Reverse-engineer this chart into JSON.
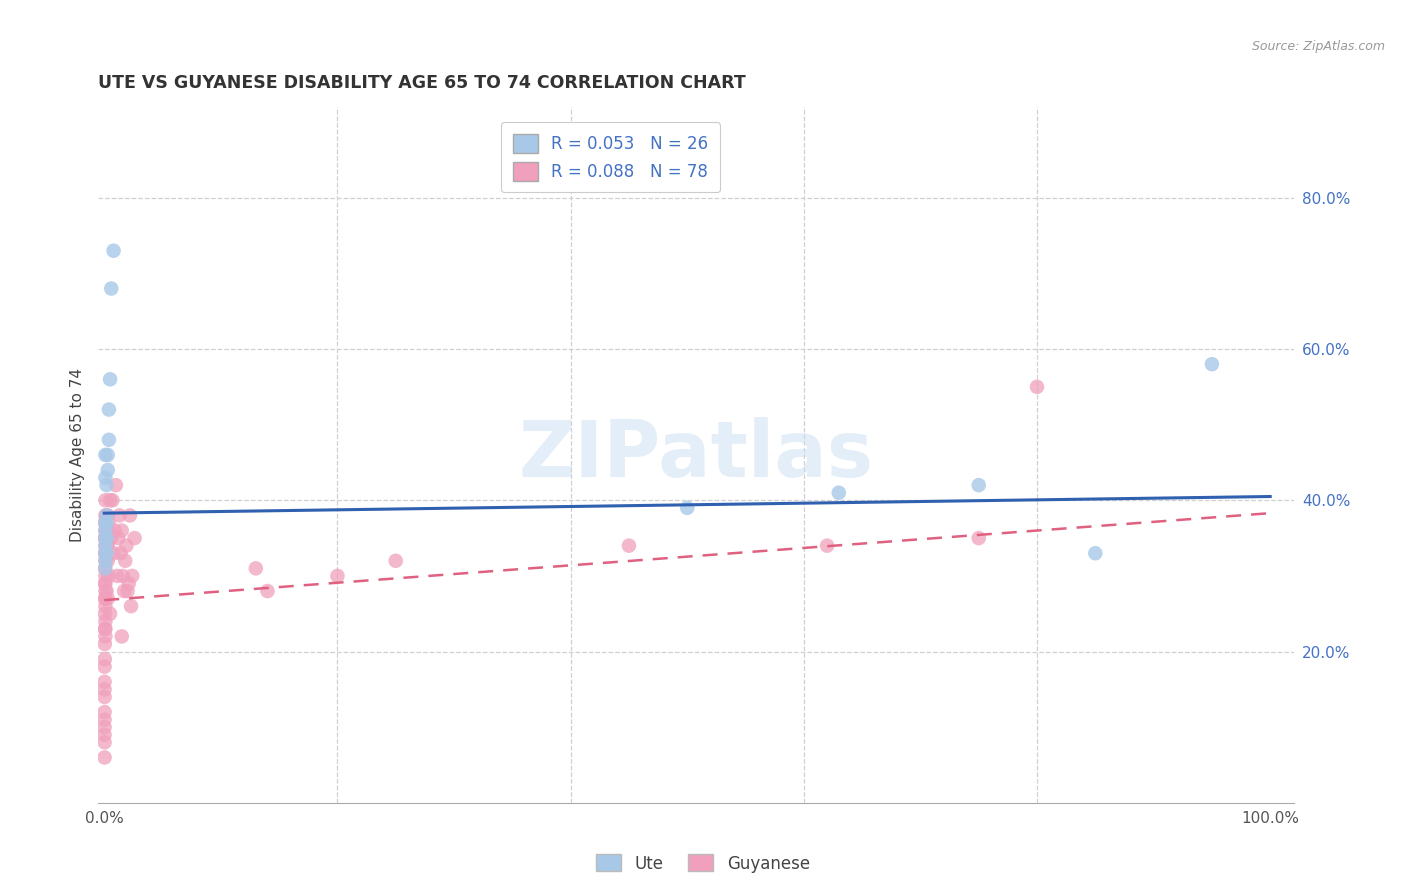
{
  "title": "UTE VS GUYANESE DISABILITY AGE 65 TO 74 CORRELATION CHART",
  "source": "Source: ZipAtlas.com",
  "ylabel": "Disability Age 65 to 74",
  "watermark": "ZIPatlas",
  "ute_R": 0.053,
  "ute_N": 26,
  "guyanese_R": 0.088,
  "guyanese_N": 78,
  "xlim": [
    -0.005,
    1.02
  ],
  "ylim": [
    0.0,
    0.92
  ],
  "yticks": [
    0.2,
    0.4,
    0.6,
    0.8
  ],
  "ytick_labels": [
    "20.0%",
    "40.0%",
    "60.0%",
    "80.0%"
  ],
  "xticks": [
    0.0,
    0.1,
    0.2,
    0.3,
    0.4,
    0.5,
    0.6,
    0.7,
    0.8,
    0.9,
    1.0
  ],
  "xtick_labels": [
    "0.0%",
    "",
    "",
    "",
    "",
    "",
    "",
    "",
    "",
    "",
    "100.0%"
  ],
  "ute_color": "#a8c8e8",
  "ute_line_color": "#3060b0",
  "guyanese_color": "#f0a0bc",
  "guyanese_line_color": "#e06080",
  "background_color": "#ffffff",
  "grid_color": "#d0d0d0",
  "ute_line_intercept": 0.383,
  "ute_line_slope": 0.022,
  "guyanese_line_intercept": 0.268,
  "guyanese_line_slope": 0.115,
  "ute_x": [
    0.008,
    0.006,
    0.005,
    0.004,
    0.004,
    0.003,
    0.003,
    0.002,
    0.002,
    0.002,
    0.002,
    0.002,
    0.001,
    0.001,
    0.001,
    0.001,
    0.001,
    0.001,
    0.001,
    0.001,
    0.001,
    0.5,
    0.63,
    0.75,
    0.85,
    0.95
  ],
  "ute_y": [
    0.73,
    0.68,
    0.56,
    0.52,
    0.48,
    0.46,
    0.44,
    0.42,
    0.38,
    0.37,
    0.35,
    0.33,
    0.46,
    0.43,
    0.37,
    0.36,
    0.35,
    0.34,
    0.33,
    0.32,
    0.31,
    0.39,
    0.41,
    0.42,
    0.33,
    0.58
  ],
  "guyanese_x": [
    0.0005,
    0.0005,
    0.0005,
    0.0005,
    0.0005,
    0.0005,
    0.0005,
    0.0005,
    0.0005,
    0.0005,
    0.001,
    0.001,
    0.001,
    0.001,
    0.001,
    0.001,
    0.001,
    0.001,
    0.001,
    0.001,
    0.001,
    0.001,
    0.001,
    0.001,
    0.001,
    0.002,
    0.002,
    0.002,
    0.002,
    0.002,
    0.003,
    0.003,
    0.003,
    0.003,
    0.003,
    0.004,
    0.004,
    0.005,
    0.005,
    0.006,
    0.007,
    0.008,
    0.009,
    0.01,
    0.011,
    0.012,
    0.013,
    0.015,
    0.015,
    0.016,
    0.018,
    0.02,
    0.022,
    0.024,
    0.026,
    0.014,
    0.017,
    0.019,
    0.021,
    0.023,
    0.13,
    0.14,
    0.2,
    0.25,
    0.45,
    0.62,
    0.75,
    0.8,
    0.0003,
    0.0003,
    0.0003,
    0.0003,
    0.0003,
    0.0003,
    0.0003,
    0.0003,
    0.0003,
    0.0003
  ],
  "guyanese_y": [
    0.37,
    0.35,
    0.33,
    0.31,
    0.29,
    0.27,
    0.25,
    0.23,
    0.21,
    0.19,
    0.4,
    0.38,
    0.36,
    0.35,
    0.34,
    0.33,
    0.32,
    0.3,
    0.29,
    0.28,
    0.27,
    0.26,
    0.24,
    0.23,
    0.22,
    0.38,
    0.36,
    0.35,
    0.34,
    0.28,
    0.38,
    0.36,
    0.34,
    0.32,
    0.27,
    0.37,
    0.3,
    0.4,
    0.25,
    0.35,
    0.4,
    0.33,
    0.36,
    0.42,
    0.3,
    0.35,
    0.38,
    0.36,
    0.22,
    0.3,
    0.32,
    0.28,
    0.38,
    0.3,
    0.35,
    0.33,
    0.28,
    0.34,
    0.29,
    0.26,
    0.31,
    0.28,
    0.3,
    0.32,
    0.34,
    0.34,
    0.35,
    0.55,
    0.18,
    0.16,
    0.14,
    0.12,
    0.1,
    0.08,
    0.06,
    0.09,
    0.11,
    0.15
  ]
}
